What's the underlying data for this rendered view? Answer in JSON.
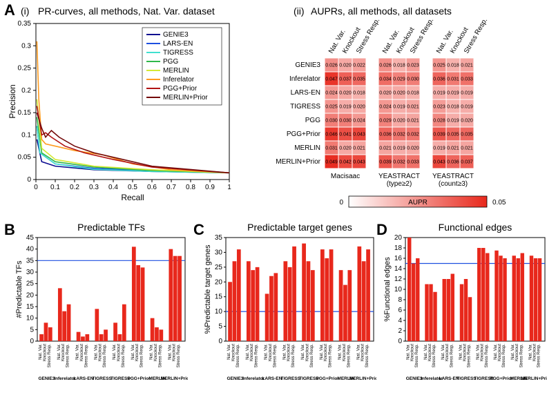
{
  "panelA": {
    "label_i": "(i)",
    "label_ii": "(ii)",
    "title_i": "PR-curves, all methods, Nat. Var. dataset",
    "title_ii": "AUPRs, all methods, all datasets",
    "xlabel": "Recall",
    "ylabel": "Precision",
    "xlim": [
      0,
      1
    ],
    "ylim": [
      0,
      0.35
    ],
    "xticks": [
      0,
      0.1,
      0.2,
      0.3,
      0.4,
      0.5,
      0.6,
      0.7,
      0.8,
      0.9,
      1
    ],
    "yticks": [
      0,
      0.05,
      0.1,
      0.15,
      0.2,
      0.25,
      0.3,
      0.35
    ],
    "axis_color": "#000000",
    "bg": "#ffffff",
    "methods": [
      {
        "name": "GENIE3",
        "color": "#0a0a90"
      },
      {
        "name": "LARS-EN",
        "color": "#1d4fe0"
      },
      {
        "name": "TIGRESS",
        "color": "#40e0d0"
      },
      {
        "name": "PGG",
        "color": "#2fb84a"
      },
      {
        "name": "MERLIN",
        "color": "#d4e834"
      },
      {
        "name": "Inferelator",
        "color": "#ff9a1e"
      },
      {
        "name": "PGG+Prior",
        "color": "#b11212"
      },
      {
        "name": "MERLIN+Prior",
        "color": "#730909"
      }
    ],
    "curves": {
      "GENIE3": [
        [
          0.005,
          0.09
        ],
        [
          0.03,
          0.04
        ],
        [
          0.1,
          0.03
        ],
        [
          0.3,
          0.022
        ],
        [
          0.6,
          0.018
        ],
        [
          1,
          0.015
        ]
      ],
      "LARS-EN": [
        [
          0.005,
          0.12
        ],
        [
          0.02,
          0.06
        ],
        [
          0.1,
          0.035
        ],
        [
          0.3,
          0.025
        ],
        [
          0.6,
          0.02
        ],
        [
          1,
          0.015
        ]
      ],
      "TIGRESS": [
        [
          0.005,
          0.12
        ],
        [
          0.02,
          0.06
        ],
        [
          0.1,
          0.035
        ],
        [
          0.3,
          0.023
        ],
        [
          0.6,
          0.018
        ],
        [
          1,
          0.015
        ]
      ],
      "PGG": [
        [
          0.005,
          0.14
        ],
        [
          0.03,
          0.06
        ],
        [
          0.1,
          0.04
        ],
        [
          0.3,
          0.028
        ],
        [
          0.6,
          0.02
        ],
        [
          1,
          0.015
        ]
      ],
      "MERLIN": [
        [
          0.005,
          0.18
        ],
        [
          0.03,
          0.07
        ],
        [
          0.1,
          0.045
        ],
        [
          0.3,
          0.03
        ],
        [
          0.6,
          0.022
        ],
        [
          1,
          0.015
        ]
      ],
      "Inferelator": [
        [
          0.005,
          0.31
        ],
        [
          0.015,
          0.18
        ],
        [
          0.03,
          0.09
        ],
        [
          0.05,
          0.08
        ],
        [
          0.1,
          0.075
        ],
        [
          0.2,
          0.065
        ],
        [
          0.35,
          0.055
        ],
        [
          0.5,
          0.035
        ],
        [
          0.7,
          0.022
        ],
        [
          1,
          0.015
        ]
      ],
      "PGG+Prior": [
        [
          0.005,
          0.165
        ],
        [
          0.03,
          0.1
        ],
        [
          0.05,
          0.105
        ],
        [
          0.08,
          0.095
        ],
        [
          0.15,
          0.075
        ],
        [
          0.25,
          0.06
        ],
        [
          0.4,
          0.045
        ],
        [
          0.6,
          0.028
        ],
        [
          1,
          0.015
        ]
      ],
      "MERLIN+Prior": [
        [
          0.005,
          0.15
        ],
        [
          0.03,
          0.115
        ],
        [
          0.05,
          0.095
        ],
        [
          0.08,
          0.11
        ],
        [
          0.12,
          0.095
        ],
        [
          0.2,
          0.075
        ],
        [
          0.3,
          0.06
        ],
        [
          0.45,
          0.045
        ],
        [
          0.6,
          0.03
        ],
        [
          1,
          0.015
        ]
      ]
    }
  },
  "heatmap": {
    "row_labels": [
      "GENIE3",
      "Inferelator",
      "LARS-EN",
      "TIGRESS",
      "PGG",
      "PGG+Prior",
      "MERLIN",
      "MERLIN+Prior"
    ],
    "col_labels": [
      "Nat. Var.",
      "Knockout",
      "Stress Resp."
    ],
    "group_labels": [
      "Macisaac",
      "YEASTRACT\n(type≥2)",
      "YEASTRACT\n(count≥3)"
    ],
    "color_min": "#ffffff",
    "color_max": "#e8281c",
    "value_max": 0.05,
    "legend_label": "AUPR",
    "legend_min": "0",
    "legend_max": "0.05",
    "data": [
      [
        [
          0.026,
          0.02,
          0.022
        ],
        [
          0.026,
          0.018,
          0.023
        ],
        [
          0.025,
          0.018,
          0.021
        ]
      ],
      [
        [
          0.047,
          0.037,
          0.035
        ],
        [
          0.034,
          0.029,
          0.03
        ],
        [
          0.036,
          0.031,
          0.033
        ]
      ],
      [
        [
          0.024,
          0.02,
          0.018
        ],
        [
          0.02,
          0.02,
          0.018
        ],
        [
          0.019,
          0.019,
          0.019
        ]
      ],
      [
        [
          0.025,
          0.019,
          0.02
        ],
        [
          0.024,
          0.019,
          0.021
        ],
        [
          0.023,
          0.018,
          0.019
        ]
      ],
      [
        [
          0.03,
          0.03,
          0.024
        ],
        [
          0.029,
          0.02,
          0.021
        ],
        [
          0.028,
          0.019,
          0.02
        ]
      ],
      [
        [
          0.046,
          0.041,
          0.043
        ],
        [
          0.036,
          0.032,
          0.032
        ],
        [
          0.039,
          0.035,
          0.035
        ]
      ],
      [
        [
          0.031,
          0.02,
          0.021
        ],
        [
          0.021,
          0.019,
          0.02
        ],
        [
          0.019,
          0.021,
          0.021
        ]
      ],
      [
        [
          0.049,
          0.042,
          0.043
        ],
        [
          0.039,
          0.032,
          0.033
        ],
        [
          0.043,
          0.036,
          0.037
        ]
      ]
    ]
  },
  "barB": {
    "title": "Predictable TFs",
    "ylabel": "#Predictable TFs",
    "ylim": [
      0,
      45
    ],
    "yticks": [
      0,
      5,
      10,
      15,
      20,
      25,
      30,
      35,
      40,
      45
    ],
    "bar_color": "#e8281c",
    "ref_color": "#1d4fe0",
    "ref_val": 35,
    "groups": [
      "GENIE3",
      "Inferelator",
      "LARS-EN",
      "TIGRESS",
      "TIGRESS",
      "PGG+Prior",
      "MERLIN",
      "MERLIN+Prior"
    ],
    "sub_labels": [
      "Nat. Var.",
      "Knockout",
      "Stress Resp."
    ],
    "values": [
      [
        3,
        8,
        6
      ],
      [
        23,
        13,
        16
      ],
      [
        4,
        2,
        3
      ],
      [
        14,
        3,
        5
      ],
      [
        8,
        3,
        16
      ],
      [
        41,
        33,
        32
      ],
      [
        10,
        6,
        5
      ],
      [
        40,
        37,
        37
      ]
    ]
  },
  "barC": {
    "title": "Predictable target genes",
    "ylabel": "%Predictable target genes",
    "ylim": [
      0,
      35
    ],
    "yticks": [
      0,
      5,
      10,
      15,
      20,
      25,
      30,
      35
    ],
    "bar_color": "#e8281c",
    "ref_color": "#1d4fe0",
    "ref_val": 10,
    "groups": [
      "GENIE3",
      "Inferelator",
      "LARS-EN",
      "TIGRESS",
      "TIGRESS",
      "PGG+Prior",
      "MERLIN",
      "MERLIN+Prior"
    ],
    "sub_labels": [
      "Nat. Var.",
      "Knockout",
      "Stress Resp."
    ],
    "values": [
      [
        20,
        27,
        31
      ],
      [
        27,
        24,
        25
      ],
      [
        16,
        22,
        23
      ],
      [
        27,
        25,
        32
      ],
      [
        33,
        27,
        24
      ],
      [
        31,
        28,
        31
      ],
      [
        24,
        19,
        24
      ],
      [
        32,
        27,
        31
      ]
    ]
  },
  "barD": {
    "title": "Functional edges",
    "ylabel": "%Functional edges",
    "ylim": [
      0,
      20
    ],
    "yticks": [
      0,
      2,
      4,
      6,
      8,
      10,
      12,
      14,
      16,
      18,
      20
    ],
    "bar_color": "#e8281c",
    "ref_color": "#1d4fe0",
    "ref_val": 15,
    "groups": [
      "GENIE3",
      "Inferelator",
      "LARS-EN",
      "TIGRESS",
      "TIGRESS",
      "PGG+Prior",
      "MERLIN",
      "MERLIN+Prior"
    ],
    "sub_labels": [
      "Nat. Var.",
      "Knockout",
      "Stress Resp."
    ],
    "values": [
      [
        20,
        15,
        16
      ],
      [
        11,
        11,
        9.5
      ],
      [
        12,
        12,
        13
      ],
      [
        11,
        12,
        8.5
      ],
      [
        18,
        18,
        17
      ],
      [
        17.5,
        16.5,
        16
      ],
      [
        16.5,
        16,
        17
      ],
      [
        16.5,
        16,
        16
      ]
    ]
  }
}
